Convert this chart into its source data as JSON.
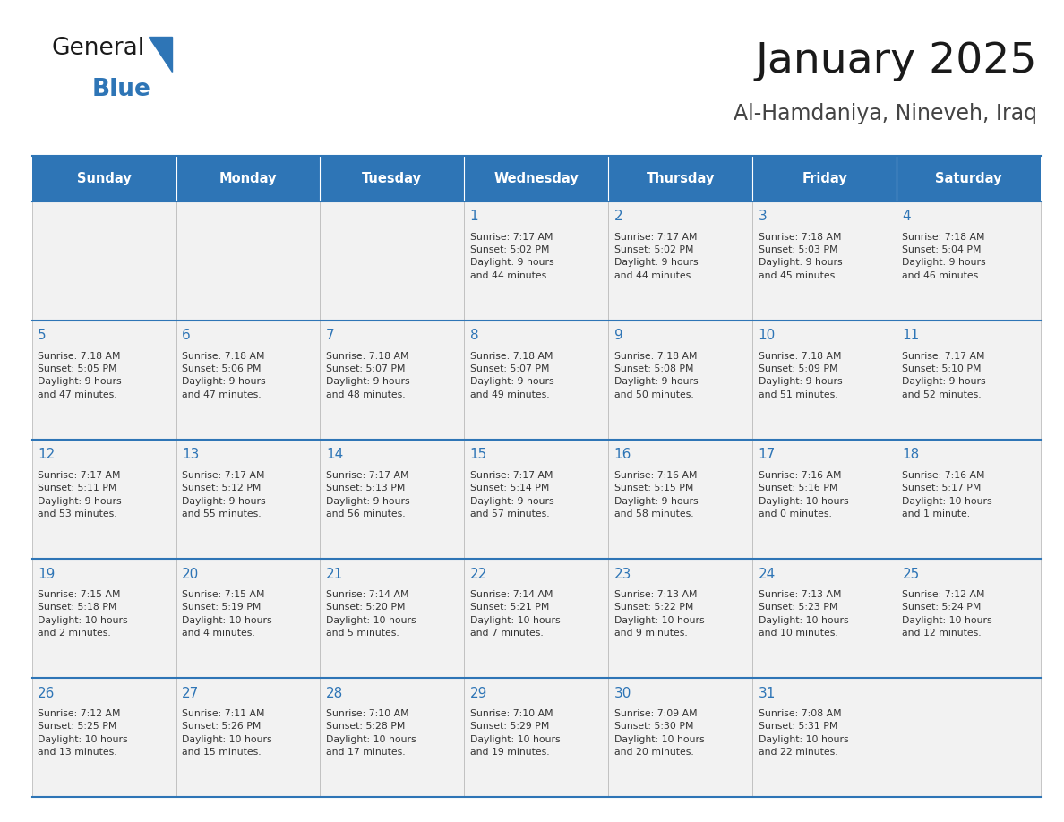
{
  "title": "January 2025",
  "subtitle": "Al-Hamdaniya, Nineveh, Iraq",
  "days_of_week": [
    "Sunday",
    "Monday",
    "Tuesday",
    "Wednesday",
    "Thursday",
    "Friday",
    "Saturday"
  ],
  "header_bg": "#2E75B6",
  "header_text": "#FFFFFF",
  "cell_bg_even": "#F2F2F2",
  "cell_bg_white": "#FFFFFF",
  "cell_border": "#BBBBBB",
  "row_divider": "#2E75B6",
  "day_number_color": "#2E75B6",
  "cell_text_color": "#333333",
  "title_color": "#1a1a1a",
  "subtitle_color": "#444444",
  "logo_general_color": "#1a1a1a",
  "logo_blue_color": "#2E75B6",
  "weeks": [
    [
      {
        "day": null,
        "info": null
      },
      {
        "day": null,
        "info": null
      },
      {
        "day": null,
        "info": null
      },
      {
        "day": 1,
        "info": "Sunrise: 7:17 AM\nSunset: 5:02 PM\nDaylight: 9 hours\nand 44 minutes."
      },
      {
        "day": 2,
        "info": "Sunrise: 7:17 AM\nSunset: 5:02 PM\nDaylight: 9 hours\nand 44 minutes."
      },
      {
        "day": 3,
        "info": "Sunrise: 7:18 AM\nSunset: 5:03 PM\nDaylight: 9 hours\nand 45 minutes."
      },
      {
        "day": 4,
        "info": "Sunrise: 7:18 AM\nSunset: 5:04 PM\nDaylight: 9 hours\nand 46 minutes."
      }
    ],
    [
      {
        "day": 5,
        "info": "Sunrise: 7:18 AM\nSunset: 5:05 PM\nDaylight: 9 hours\nand 47 minutes."
      },
      {
        "day": 6,
        "info": "Sunrise: 7:18 AM\nSunset: 5:06 PM\nDaylight: 9 hours\nand 47 minutes."
      },
      {
        "day": 7,
        "info": "Sunrise: 7:18 AM\nSunset: 5:07 PM\nDaylight: 9 hours\nand 48 minutes."
      },
      {
        "day": 8,
        "info": "Sunrise: 7:18 AM\nSunset: 5:07 PM\nDaylight: 9 hours\nand 49 minutes."
      },
      {
        "day": 9,
        "info": "Sunrise: 7:18 AM\nSunset: 5:08 PM\nDaylight: 9 hours\nand 50 minutes."
      },
      {
        "day": 10,
        "info": "Sunrise: 7:18 AM\nSunset: 5:09 PM\nDaylight: 9 hours\nand 51 minutes."
      },
      {
        "day": 11,
        "info": "Sunrise: 7:17 AM\nSunset: 5:10 PM\nDaylight: 9 hours\nand 52 minutes."
      }
    ],
    [
      {
        "day": 12,
        "info": "Sunrise: 7:17 AM\nSunset: 5:11 PM\nDaylight: 9 hours\nand 53 minutes."
      },
      {
        "day": 13,
        "info": "Sunrise: 7:17 AM\nSunset: 5:12 PM\nDaylight: 9 hours\nand 55 minutes."
      },
      {
        "day": 14,
        "info": "Sunrise: 7:17 AM\nSunset: 5:13 PM\nDaylight: 9 hours\nand 56 minutes."
      },
      {
        "day": 15,
        "info": "Sunrise: 7:17 AM\nSunset: 5:14 PM\nDaylight: 9 hours\nand 57 minutes."
      },
      {
        "day": 16,
        "info": "Sunrise: 7:16 AM\nSunset: 5:15 PM\nDaylight: 9 hours\nand 58 minutes."
      },
      {
        "day": 17,
        "info": "Sunrise: 7:16 AM\nSunset: 5:16 PM\nDaylight: 10 hours\nand 0 minutes."
      },
      {
        "day": 18,
        "info": "Sunrise: 7:16 AM\nSunset: 5:17 PM\nDaylight: 10 hours\nand 1 minute."
      }
    ],
    [
      {
        "day": 19,
        "info": "Sunrise: 7:15 AM\nSunset: 5:18 PM\nDaylight: 10 hours\nand 2 minutes."
      },
      {
        "day": 20,
        "info": "Sunrise: 7:15 AM\nSunset: 5:19 PM\nDaylight: 10 hours\nand 4 minutes."
      },
      {
        "day": 21,
        "info": "Sunrise: 7:14 AM\nSunset: 5:20 PM\nDaylight: 10 hours\nand 5 minutes."
      },
      {
        "day": 22,
        "info": "Sunrise: 7:14 AM\nSunset: 5:21 PM\nDaylight: 10 hours\nand 7 minutes."
      },
      {
        "day": 23,
        "info": "Sunrise: 7:13 AM\nSunset: 5:22 PM\nDaylight: 10 hours\nand 9 minutes."
      },
      {
        "day": 24,
        "info": "Sunrise: 7:13 AM\nSunset: 5:23 PM\nDaylight: 10 hours\nand 10 minutes."
      },
      {
        "day": 25,
        "info": "Sunrise: 7:12 AM\nSunset: 5:24 PM\nDaylight: 10 hours\nand 12 minutes."
      }
    ],
    [
      {
        "day": 26,
        "info": "Sunrise: 7:12 AM\nSunset: 5:25 PM\nDaylight: 10 hours\nand 13 minutes."
      },
      {
        "day": 27,
        "info": "Sunrise: 7:11 AM\nSunset: 5:26 PM\nDaylight: 10 hours\nand 15 minutes."
      },
      {
        "day": 28,
        "info": "Sunrise: 7:10 AM\nSunset: 5:28 PM\nDaylight: 10 hours\nand 17 minutes."
      },
      {
        "day": 29,
        "info": "Sunrise: 7:10 AM\nSunset: 5:29 PM\nDaylight: 10 hours\nand 19 minutes."
      },
      {
        "day": 30,
        "info": "Sunrise: 7:09 AM\nSunset: 5:30 PM\nDaylight: 10 hours\nand 20 minutes."
      },
      {
        "day": 31,
        "info": "Sunrise: 7:08 AM\nSunset: 5:31 PM\nDaylight: 10 hours\nand 22 minutes."
      },
      {
        "day": null,
        "info": null
      }
    ]
  ]
}
